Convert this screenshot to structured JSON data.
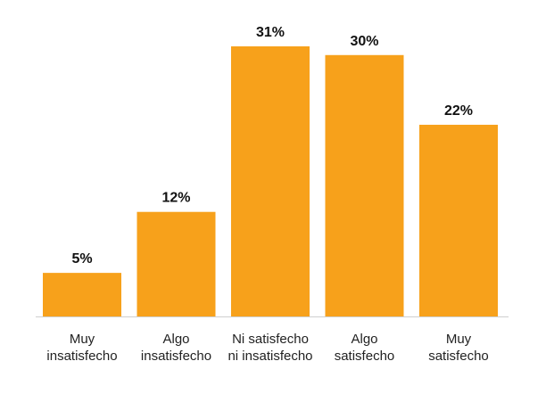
{
  "chart_data": {
    "type": "bar",
    "categories": [
      "Muy insatisfecho",
      "Algo insatisfecho",
      "Ni satisfecho ni insatisfecho",
      "Algo satisfecho",
      "Muy satisfecho"
    ],
    "category_label_lines": [
      [
        "Muy",
        "insatisfecho"
      ],
      [
        "Algo",
        "insatisfecho"
      ],
      [
        "Ni satisfecho",
        "ni insatisfecho"
      ],
      [
        "Algo",
        "satisfecho"
      ],
      [
        "Muy",
        "satisfecho"
      ]
    ],
    "values": [
      5,
      12,
      31,
      30,
      22
    ],
    "value_labels": [
      "5%",
      "12%",
      "31%",
      "30%",
      "22%"
    ],
    "title": "",
    "xlabel": "",
    "ylabel": "",
    "ylim": [
      0,
      31
    ],
    "grid": false,
    "legend": "none",
    "bar_color": "#F7A11B"
  }
}
